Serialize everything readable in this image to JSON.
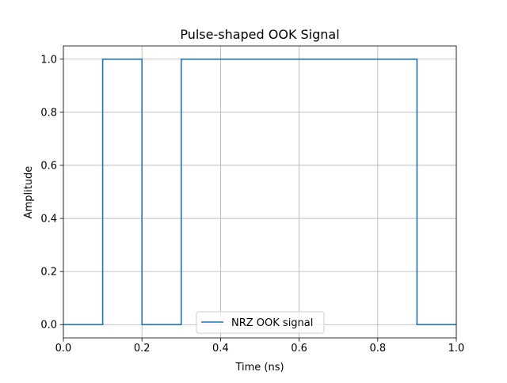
{
  "chart_data": {
    "type": "line",
    "title": "Pulse-shaped OOK Signal",
    "xlabel": "Time (ns)",
    "ylabel": "Amplitude",
    "xlim": [
      0.0,
      1.0
    ],
    "ylim": [
      -0.05,
      1.05
    ],
    "xticks": [
      0.0,
      0.2,
      0.4,
      0.6,
      0.8,
      1.0
    ],
    "xtick_labels": [
      "0.0",
      "0.2",
      "0.4",
      "0.6",
      "0.8",
      "1.0"
    ],
    "yticks": [
      0.0,
      0.2,
      0.4,
      0.6,
      0.8,
      1.0
    ],
    "ytick_labels": [
      "0.0",
      "0.2",
      "0.4",
      "0.6",
      "0.8",
      "1.0"
    ],
    "grid": true,
    "legend_position": "lower center",
    "series": [
      {
        "name": "NRZ OOK signal",
        "color": "#1f77b4",
        "step": true,
        "x": [
          0.0,
          0.1,
          0.1,
          0.2,
          0.2,
          0.3,
          0.3,
          0.9,
          0.9,
          1.0
        ],
        "y": [
          0,
          0,
          1,
          1,
          0,
          0,
          1,
          1,
          0,
          0
        ]
      }
    ]
  }
}
